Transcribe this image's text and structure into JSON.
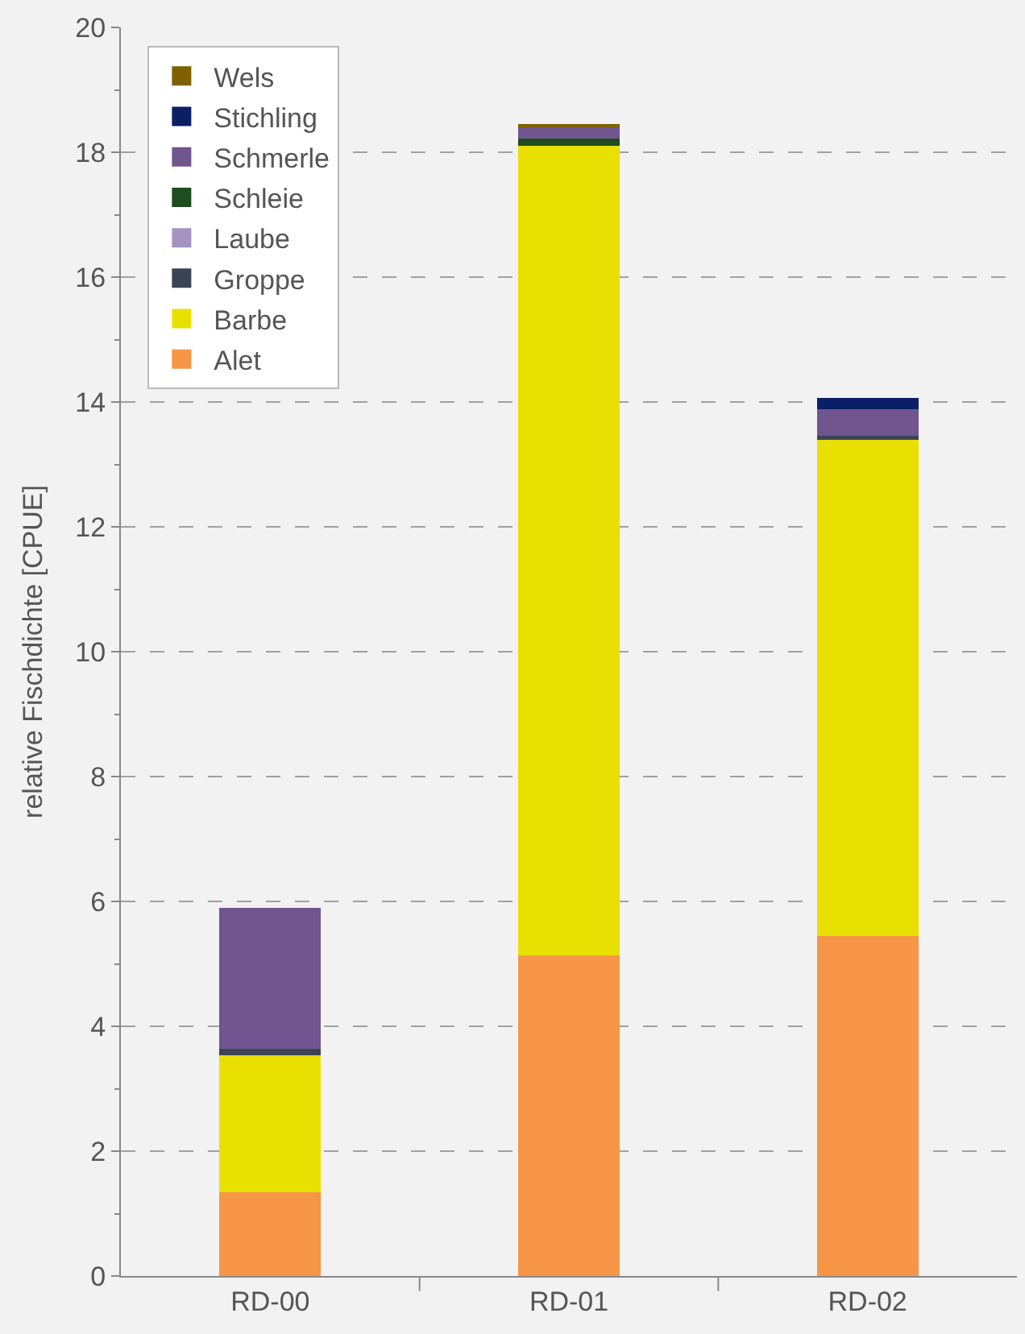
{
  "chart_data": {
    "type": "bar",
    "stacked": true,
    "ylabel": "relative Fischdichte [CPUE]",
    "categories": [
      "RD-00",
      "RD-01",
      "RD-02"
    ],
    "series": [
      {
        "name": "Alet",
        "color": "#f79646",
        "values": [
          1.34,
          5.14,
          5.45
        ]
      },
      {
        "name": "Barbe",
        "color": "#e8e000",
        "values": [
          2.2,
          12.96,
          7.94
        ]
      },
      {
        "name": "Groppe",
        "color": "#3b4454",
        "values": [
          0.1,
          null,
          0.07
        ]
      },
      {
        "name": "Laube",
        "color": "#a593c3",
        "values": [
          null,
          null,
          null
        ]
      },
      {
        "name": "Schleie",
        "color": "#1e4d20",
        "values": [
          null,
          0.12,
          null
        ]
      },
      {
        "name": "Schmerle",
        "color": "#70558f",
        "values": [
          2.26,
          0.2,
          0.43
        ]
      },
      {
        "name": "Stichling",
        "color": "#0a1f66",
        "values": [
          null,
          null,
          0.18
        ]
      },
      {
        "name": "Wels",
        "color": "#7f6000",
        "values": [
          null,
          0.03,
          null
        ]
      }
    ],
    "ylim": [
      0,
      20
    ],
    "yticks": [
      0,
      2,
      4,
      6,
      8,
      10,
      12,
      14,
      16,
      18,
      20
    ],
    "grid": "y",
    "legend": "top left"
  }
}
